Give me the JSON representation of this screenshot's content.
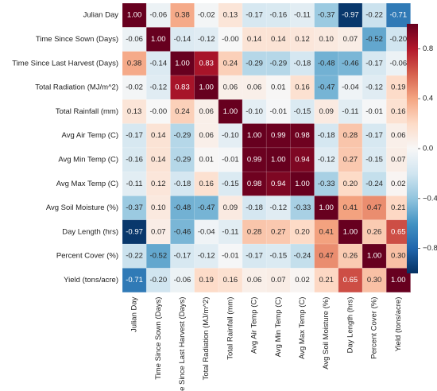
{
  "chart_data": {
    "type": "heatmap",
    "title": "",
    "labels": [
      "Julian Day",
      "Time Since Sown (Days)",
      "Time Since Last Harvest (Days)",
      "Total Radiation (MJ/m^2)",
      "Total Rainfall (mm)",
      "Avg Air Temp (C)",
      "Avg Min Temp (C)",
      "Avg Max Temp (C)",
      "Avg Soil Moisture (%)",
      "Day Length (hrs)",
      "Percent Cover (%)",
      "Yield (tons/acre)"
    ],
    "values": [
      [
        "1.00",
        "-0.06",
        "0.38",
        "-0.02",
        "0.13",
        "-0.17",
        "-0.16",
        "-0.11",
        "-0.37",
        "-0.97",
        "-0.22",
        "-0.71"
      ],
      [
        "-0.06",
        "1.00",
        "-0.14",
        "-0.12",
        "-0.00",
        "0.14",
        "0.14",
        "0.12",
        "0.10",
        "0.07",
        "-0.52",
        "-0.20"
      ],
      [
        "0.38",
        "-0.14",
        "1.00",
        "0.83",
        "0.24",
        "-0.29",
        "-0.29",
        "-0.18",
        "-0.48",
        "-0.46",
        "-0.17",
        "-0.06"
      ],
      [
        "-0.02",
        "-0.12",
        "0.83",
        "1.00",
        "0.06",
        "0.06",
        "0.01",
        "0.16",
        "-0.47",
        "-0.04",
        "-0.12",
        "0.19"
      ],
      [
        "0.13",
        "-0.00",
        "0.24",
        "0.06",
        "1.00",
        "-0.10",
        "-0.01",
        "-0.15",
        "0.09",
        "-0.11",
        "-0.01",
        "0.16"
      ],
      [
        "-0.17",
        "0.14",
        "-0.29",
        "0.06",
        "-0.10",
        "1.00",
        "0.99",
        "0.98",
        "-0.18",
        "0.28",
        "-0.17",
        "0.06"
      ],
      [
        "-0.16",
        "0.14",
        "-0.29",
        "0.01",
        "-0.01",
        "0.99",
        "1.00",
        "0.94",
        "-0.12",
        "0.27",
        "-0.15",
        "0.07"
      ],
      [
        "-0.11",
        "0.12",
        "-0.18",
        "0.16",
        "-0.15",
        "0.98",
        "0.94",
        "1.00",
        "-0.33",
        "0.20",
        "-0.24",
        "0.02"
      ],
      [
        "-0.37",
        "0.10",
        "-0.48",
        "-0.47",
        "0.09",
        "-0.18",
        "-0.12",
        "-0.33",
        "1.00",
        "0.41",
        "0.47",
        "0.21"
      ],
      [
        "-0.97",
        "0.07",
        "-0.46",
        "-0.04",
        "-0.11",
        "0.28",
        "0.27",
        "0.20",
        "0.41",
        "1.00",
        "0.26",
        "0.65"
      ],
      [
        "-0.22",
        "-0.52",
        "-0.17",
        "-0.12",
        "-0.01",
        "-0.17",
        "-0.15",
        "-0.24",
        "0.47",
        "0.26",
        "1.00",
        "0.30"
      ],
      [
        "-0.71",
        "-0.20",
        "-0.06",
        "0.19",
        "0.16",
        "0.06",
        "0.07",
        "0.02",
        "0.21",
        "0.65",
        "0.30",
        "1.00"
      ]
    ],
    "colorbar": {
      "range": [
        -1,
        1
      ],
      "ticks": [
        "0.8",
        "0.4",
        "0.0",
        "−0.4",
        "−0.8"
      ],
      "tick_values": [
        0.8,
        0.4,
        0.0,
        -0.4,
        -0.8
      ]
    },
    "colormap": {
      "name": "RdBu_r",
      "negative_end": "#053061",
      "neutral": "#f7f7f7",
      "positive_end": "#67001f"
    }
  }
}
